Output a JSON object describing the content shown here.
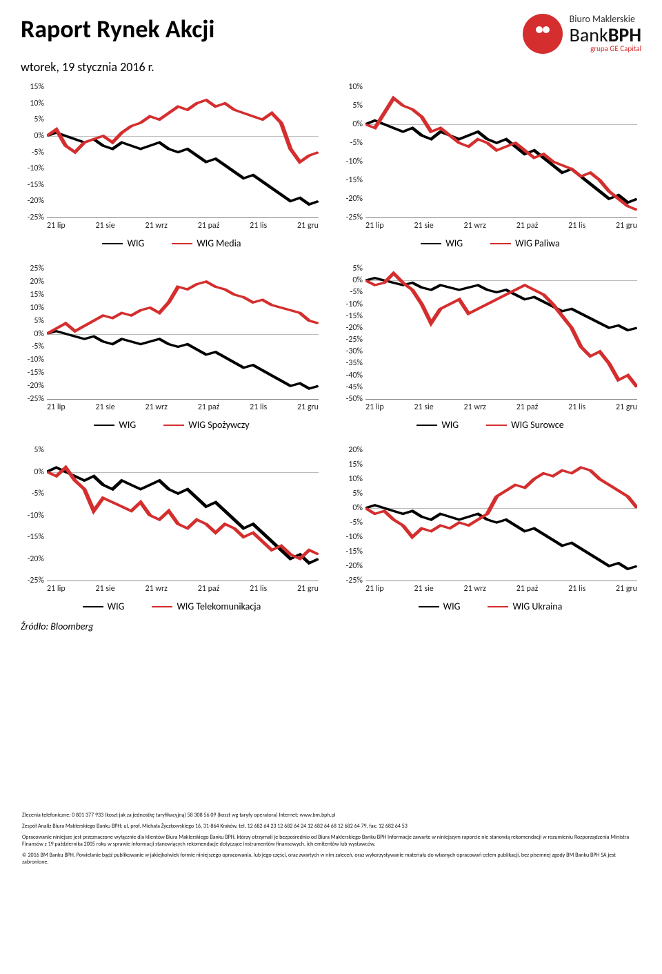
{
  "header": {
    "title": "Raport Rynek Akcji",
    "date": "wtorek, 19 stycznia 2016 r.",
    "logo": {
      "line1": "Biuro Maklerskie",
      "line2_light": "Bank",
      "line2_bold": "BPH",
      "line3": "grupa GE Capital"
    }
  },
  "colors": {
    "wig": "#000000",
    "sector": "#d42e2e",
    "grid": "#bbbbbb",
    "zero": "#888888"
  },
  "xlabels": [
    "21 lip",
    "21 sie",
    "21 wrz",
    "21 paź",
    "21 lis",
    "21 gru"
  ],
  "source": "Źródło: Bloomberg",
  "charts": [
    {
      "id": "media",
      "yticks": [
        "15%",
        "10%",
        "5%",
        "0%",
        "-5%",
        "-10%",
        "-15%",
        "-20%",
        "-25%"
      ],
      "ymin": -25,
      "ymax": 15,
      "zero_at": 0,
      "legend": [
        "WIG",
        "WIG Media"
      ],
      "series1": [
        0,
        1,
        0,
        -1,
        -2,
        -1,
        -3,
        -4,
        -2,
        -3,
        -4,
        -3,
        -2,
        -4,
        -5,
        -4,
        -6,
        -8,
        -7,
        -9,
        -11,
        -13,
        -12,
        -14,
        -16,
        -18,
        -20,
        -19,
        -21,
        -20
      ],
      "series2": [
        0,
        2,
        -3,
        -5,
        -2,
        -1,
        0,
        -2,
        1,
        3,
        4,
        6,
        5,
        7,
        9,
        8,
        10,
        11,
        9,
        10,
        8,
        7,
        6,
        5,
        7,
        4,
        -4,
        -8,
        -6,
        -5
      ]
    },
    {
      "id": "paliwa",
      "yticks": [
        "10%",
        "5%",
        "0%",
        "-5%",
        "-10%",
        "-15%",
        "-20%",
        "-25%"
      ],
      "ymin": -25,
      "ymax": 10,
      "zero_at": 0,
      "legend": [
        "WIG",
        "WIG Paliwa"
      ],
      "series1": [
        0,
        1,
        0,
        -1,
        -2,
        -1,
        -3,
        -4,
        -2,
        -3,
        -4,
        -3,
        -2,
        -4,
        -5,
        -4,
        -6,
        -8,
        -7,
        -9,
        -11,
        -13,
        -12,
        -14,
        -16,
        -18,
        -20,
        -19,
        -21,
        -20
      ],
      "series2": [
        0,
        -1,
        3,
        7,
        5,
        4,
        2,
        -2,
        -1,
        -3,
        -5,
        -6,
        -4,
        -5,
        -7,
        -6,
        -5,
        -7,
        -9,
        -8,
        -10,
        -11,
        -12,
        -14,
        -13,
        -15,
        -18,
        -20,
        -22,
        -23
      ]
    },
    {
      "id": "spozywczy",
      "yticks": [
        "25%",
        "20%",
        "15%",
        "10%",
        "5%",
        "0%",
        "-5%",
        "-10%",
        "-15%",
        "-20%",
        "-25%"
      ],
      "ymin": -25,
      "ymax": 25,
      "zero_at": 0,
      "legend": [
        "WIG",
        "WIG Spożywczy"
      ],
      "series1": [
        0,
        1,
        0,
        -1,
        -2,
        -1,
        -3,
        -4,
        -2,
        -3,
        -4,
        -3,
        -2,
        -4,
        -5,
        -4,
        -6,
        -8,
        -7,
        -9,
        -11,
        -13,
        -12,
        -14,
        -16,
        -18,
        -20,
        -19,
        -21,
        -20
      ],
      "series2": [
        0,
        2,
        4,
        1,
        3,
        5,
        7,
        6,
        8,
        7,
        9,
        10,
        8,
        12,
        18,
        17,
        19,
        20,
        18,
        17,
        15,
        14,
        12,
        13,
        11,
        10,
        9,
        8,
        5,
        4
      ]
    },
    {
      "id": "surowce",
      "yticks": [
        "5%",
        "0%",
        "-5%",
        "-10%",
        "-15%",
        "-20%",
        "-25%",
        "-30%",
        "-35%",
        "-40%",
        "-45%",
        "-50%"
      ],
      "ymin": -50,
      "ymax": 5,
      "zero_at": 0,
      "legend": [
        "WIG",
        "WIG Surowce"
      ],
      "series1": [
        0,
        1,
        0,
        -1,
        -2,
        -1,
        -3,
        -4,
        -2,
        -3,
        -4,
        -3,
        -2,
        -4,
        -5,
        -4,
        -6,
        -8,
        -7,
        -9,
        -11,
        -13,
        -12,
        -14,
        -16,
        -18,
        -20,
        -19,
        -21,
        -20
      ],
      "series2": [
        0,
        -2,
        -1,
        3,
        -1,
        -4,
        -10,
        -18,
        -12,
        -10,
        -8,
        -14,
        -12,
        -10,
        -8,
        -6,
        -4,
        -2,
        -4,
        -6,
        -10,
        -15,
        -20,
        -28,
        -32,
        -30,
        -35,
        -42,
        -40,
        -45
      ]
    },
    {
      "id": "telekom",
      "yticks": [
        "5%",
        "0%",
        "-5%",
        "-10%",
        "-15%",
        "-20%",
        "-25%"
      ],
      "ymin": -25,
      "ymax": 5,
      "zero_at": 0,
      "legend": [
        "WIG",
        "WIG Telekomunikacja"
      ],
      "series1": [
        0,
        1,
        0,
        -1,
        -2,
        -1,
        -3,
        -4,
        -2,
        -3,
        -4,
        -3,
        -2,
        -4,
        -5,
        -4,
        -6,
        -8,
        -7,
        -9,
        -11,
        -13,
        -12,
        -14,
        -16,
        -18,
        -20,
        -19,
        -21,
        -20
      ],
      "series2": [
        0,
        -1,
        1,
        -2,
        -4,
        -9,
        -6,
        -7,
        -8,
        -9,
        -7,
        -10,
        -11,
        -9,
        -12,
        -13,
        -11,
        -12,
        -14,
        -12,
        -13,
        -15,
        -14,
        -16,
        -18,
        -17,
        -19,
        -20,
        -18,
        -19
      ]
    },
    {
      "id": "ukraina",
      "yticks": [
        "20%",
        "15%",
        "10%",
        "5%",
        "0%",
        "-5%",
        "-10%",
        "-15%",
        "-20%",
        "-25%"
      ],
      "ymin": -25,
      "ymax": 20,
      "zero_at": 0,
      "legend": [
        "WIG",
        "WIG Ukraina"
      ],
      "series1": [
        0,
        1,
        0,
        -1,
        -2,
        -1,
        -3,
        -4,
        -2,
        -3,
        -4,
        -3,
        -2,
        -4,
        -5,
        -4,
        -6,
        -8,
        -7,
        -9,
        -11,
        -13,
        -12,
        -14,
        -16,
        -18,
        -20,
        -19,
        -21,
        -20
      ],
      "series2": [
        0,
        -2,
        -1,
        -4,
        -6,
        -10,
        -7,
        -8,
        -6,
        -7,
        -5,
        -6,
        -4,
        -2,
        4,
        6,
        8,
        7,
        10,
        12,
        11,
        13,
        12,
        14,
        13,
        10,
        8,
        6,
        4,
        0
      ]
    }
  ],
  "footer": {
    "p1": "Zlecenia telefoniczne: 0 801 377 933 (koszt jak za jednostkę taryfikacyjną) 58 308 56 09 (koszt wg taryfy operatora) Internet: www.bm.bph.pl",
    "p2": "Zespół Analiz Biura Maklerskiego Banku BPH: ul. prof. Michała Życzkowskiego 16, 31-864 Kraków, tel. 12 682 64 23 12 682 64 24 12 682 64 68 12 682 64 79, fax: 12 682 64 53",
    "p3": "Opracowanie niniejsze jest przeznaczone wyłącznie dla klientów Biura Maklerskiego Banku BPH, którzy otrzymali je bezpośrednio od Biura Maklerskiego Banku BPH Informacje zawarte w niniejszym raporcie nie stanowią rekomendacji w rozumieniu Rozporządzenia Ministra Finansów z 19 października 2005 roku w sprawie informacji stanowiących rekomendacje dotyczące instrumentów finansowych, ich emitentów lub wystawców.",
    "p4": "© 2016 BM Banku BPH. Powielanie bądź publikowanie w jakiejkolwiek formie niniejszego opracowania, lub jego części, oraz zwartych w nim zaleceń, oraz wykorzystywanie materiału do własnych opracowań celem publikacji, bez pisemnej zgody BM Banku BPH SA jest zabronione."
  }
}
